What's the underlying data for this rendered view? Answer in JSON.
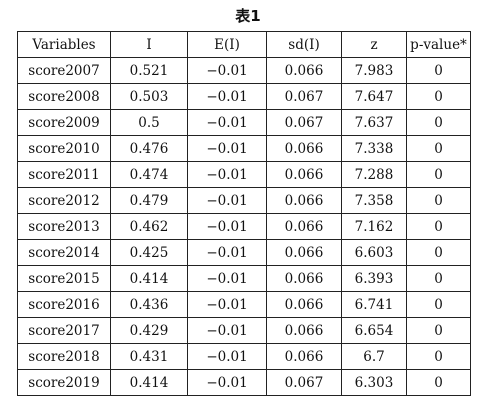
{
  "caption": "表1",
  "table": {
    "headers": [
      "Variables",
      "I",
      "E(I)",
      "sd(I)",
      "z",
      "p-value*"
    ],
    "rows": [
      [
        "score2007",
        "0.521",
        "−0.01",
        "0.066",
        "7.983",
        "0"
      ],
      [
        "score2008",
        "0.503",
        "−0.01",
        "0.067",
        "7.647",
        "0"
      ],
      [
        "score2009",
        "0.5",
        "−0.01",
        "0.067",
        "7.637",
        "0"
      ],
      [
        "score2010",
        "0.476",
        "−0.01",
        "0.066",
        "7.338",
        "0"
      ],
      [
        "score2011",
        "0.474",
        "−0.01",
        "0.066",
        "7.288",
        "0"
      ],
      [
        "score2012",
        "0.479",
        "−0.01",
        "0.066",
        "7.358",
        "0"
      ],
      [
        "score2013",
        "0.462",
        "−0.01",
        "0.066",
        "7.162",
        "0"
      ],
      [
        "score2014",
        "0.425",
        "−0.01",
        "0.066",
        "6.603",
        "0"
      ],
      [
        "score2015",
        "0.414",
        "−0.01",
        "0.066",
        "6.393",
        "0"
      ],
      [
        "score2016",
        "0.436",
        "−0.01",
        "0.066",
        "6.741",
        "0"
      ],
      [
        "score2017",
        "0.429",
        "−0.01",
        "0.066",
        "6.654",
        "0"
      ],
      [
        "score2018",
        "0.431",
        "−0.01",
        "0.066",
        "6.7",
        "0"
      ],
      [
        "score2019",
        "0.414",
        "−0.01",
        "0.067",
        "6.303",
        "0"
      ]
    ]
  }
}
